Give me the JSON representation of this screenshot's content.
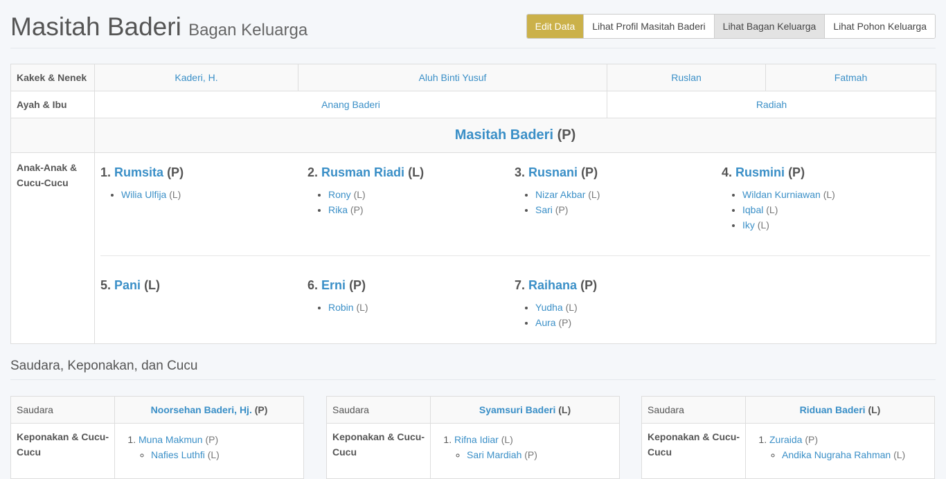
{
  "header": {
    "title": "Masitah Baderi",
    "subtitle": "Bagan Keluarga"
  },
  "buttons": [
    {
      "label": "Edit Data"
    },
    {
      "label": "Lihat Profil Masitah Baderi"
    },
    {
      "label": "Lihat Bagan Keluarga",
      "active": true
    },
    {
      "label": "Lihat Pohon Keluarga"
    }
  ],
  "colors": {
    "link": "#3a8fc7",
    "edit_button": "#cbb14a"
  },
  "chart": {
    "grandparents_label": "Kakek & Nenek",
    "grandparents": [
      "Kaderi, H.",
      "Aluh Binti Yusuf",
      "Ruslan",
      "Fatmah"
    ],
    "parents_label": "Ayah & Ibu",
    "parents": [
      "Anang Baderi",
      "Radiah"
    ],
    "self": {
      "name": "Masitah Baderi",
      "gender": "(P)"
    },
    "children_label": "Anak-Anak & Cucu-Cucu",
    "children": [
      {
        "num": "1.",
        "name": "Rumsita",
        "gender": "(P)",
        "grandchildren": [
          {
            "name": "Wilia Ulfija",
            "gender": "(L)"
          }
        ]
      },
      {
        "num": "2.",
        "name": "Rusman Riadi",
        "gender": "(L)",
        "grandchildren": [
          {
            "name": "Rony",
            "gender": "(L)"
          },
          {
            "name": "Rika",
            "gender": "(P)"
          }
        ]
      },
      {
        "num": "3.",
        "name": "Rusnani",
        "gender": "(P)",
        "grandchildren": [
          {
            "name": "Nizar Akbar",
            "gender": "(L)"
          },
          {
            "name": "Sari",
            "gender": "(P)"
          }
        ]
      },
      {
        "num": "4.",
        "name": "Rusmini",
        "gender": "(P)",
        "grandchildren": [
          {
            "name": "Wildan Kurniawan",
            "gender": "(L)"
          },
          {
            "name": "Iqbal",
            "gender": "(L)"
          },
          {
            "name": "Iky",
            "gender": "(L)"
          }
        ]
      },
      {
        "num": "5.",
        "name": "Pani",
        "gender": "(L)",
        "grandchildren": []
      },
      {
        "num": "6.",
        "name": "Erni",
        "gender": "(P)",
        "grandchildren": [
          {
            "name": "Robin",
            "gender": "(L)"
          }
        ]
      },
      {
        "num": "7.",
        "name": "Raihana",
        "gender": "(P)",
        "grandchildren": [
          {
            "name": "Yudha",
            "gender": "(L)"
          },
          {
            "name": "Aura",
            "gender": "(P)"
          }
        ]
      }
    ]
  },
  "siblings_section": {
    "title": "Saudara, Keponakan, dan Cucu",
    "sibling_label": "Saudara",
    "nephew_label": "Keponakan & Cucu-Cucu",
    "siblings": [
      {
        "name": "Noorsehan Baderi, Hj.",
        "gender": "(P)",
        "nephews": [
          {
            "num": "1.",
            "name": "Muna Makmun",
            "gender": "(P)",
            "kids": [
              {
                "name": "Nafies Luthfi",
                "gender": "(L)"
              }
            ]
          }
        ]
      },
      {
        "name": "Syamsuri Baderi",
        "gender": "(L)",
        "nephews": [
          {
            "num": "1.",
            "name": "Rifna Idiar",
            "gender": "(L)",
            "kids": [
              {
                "name": "Sari Mardiah",
                "gender": "(P)"
              }
            ]
          }
        ]
      },
      {
        "name": "Riduan Baderi",
        "gender": "(L)",
        "nephews": [
          {
            "num": "1.",
            "name": "Zuraida",
            "gender": "(P)",
            "kids": [
              {
                "name": "Andika Nugraha Rahman",
                "gender": "(L)"
              }
            ]
          }
        ]
      }
    ]
  }
}
